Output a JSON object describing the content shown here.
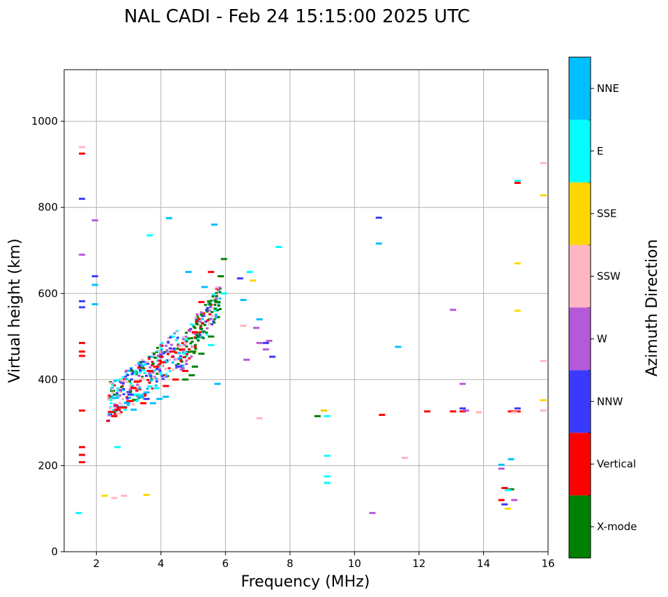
{
  "chart_data": {
    "type": "scatter",
    "title": "NAL CADI - Feb 24 15:15:00 2025 UTC",
    "xlabel": "Frequency (MHz)",
    "ylabel": "Virtual height (km)",
    "xlim": [
      1,
      16
    ],
    "ylim": [
      0,
      1120
    ],
    "xticks": [
      "2",
      "4",
      "6",
      "8",
      "10",
      "12",
      "14",
      "16"
    ],
    "yticks": [
      "0",
      "200",
      "400",
      "600",
      "800",
      "1000"
    ],
    "grid": true,
    "colorbar": {
      "label": "Azimuth Direction",
      "categories": [
        {
          "name": "X-mode",
          "color": "#008000"
        },
        {
          "name": "Vertical",
          "color": "#ff0000"
        },
        {
          "name": "NNW",
          "color": "#3a3aff"
        },
        {
          "name": "W",
          "color": "#b45ad8"
        },
        {
          "name": "SSW",
          "color": "#ffb6c1"
        },
        {
          "name": "SSE",
          "color": "#ffd700"
        },
        {
          "name": "E",
          "color": "#00ffff"
        },
        {
          "name": "NNE",
          "color": "#00bfff"
        }
      ]
    },
    "series": [
      {
        "name": "Vertical",
        "points": [
          [
            1.5,
            925
          ],
          [
            1.5,
            485
          ],
          [
            1.5,
            465
          ],
          [
            1.5,
            455
          ],
          [
            1.5,
            328
          ],
          [
            1.5,
            243
          ],
          [
            1.5,
            225
          ],
          [
            1.5,
            208
          ],
          [
            2.4,
            325
          ],
          [
            2.5,
            315
          ],
          [
            2.6,
            330
          ],
          [
            2.8,
            335
          ],
          [
            3.0,
            350
          ],
          [
            3.1,
            380
          ],
          [
            3.2,
            395
          ],
          [
            3.4,
            345
          ],
          [
            3.6,
            420
          ],
          [
            3.8,
            430
          ],
          [
            4.0,
            440
          ],
          [
            4.1,
            385
          ],
          [
            4.3,
            465
          ],
          [
            4.4,
            400
          ],
          [
            4.6,
            470
          ],
          [
            4.7,
            420
          ],
          [
            5.0,
            510
          ],
          [
            5.2,
            580
          ],
          [
            5.5,
            650
          ],
          [
            10.8,
            318
          ],
          [
            12.2,
            326
          ],
          [
            13.0,
            326
          ],
          [
            13.3,
            326
          ],
          [
            14.5,
            120
          ],
          [
            14.6,
            148
          ],
          [
            14.8,
            326
          ],
          [
            15.0,
            326
          ],
          [
            15.0,
            857
          ]
        ]
      },
      {
        "name": "X-mode",
        "points": [
          [
            4.7,
            400
          ],
          [
            4.9,
            410
          ],
          [
            5.0,
            430
          ],
          [
            5.2,
            460
          ],
          [
            5.5,
            500
          ],
          [
            5.7,
            580
          ],
          [
            5.8,
            640
          ],
          [
            5.9,
            680
          ],
          [
            8.8,
            315
          ],
          [
            9.0,
            328
          ],
          [
            14.8,
            145
          ]
        ]
      },
      {
        "name": "NNW",
        "points": [
          [
            1.5,
            582
          ],
          [
            1.5,
            568
          ],
          [
            1.5,
            820
          ],
          [
            1.9,
            640
          ],
          [
            3.0,
            365
          ],
          [
            3.5,
            355
          ],
          [
            4.5,
            430
          ],
          [
            6.4,
            635
          ],
          [
            7.2,
            485
          ],
          [
            7.4,
            453
          ],
          [
            10.7,
            776
          ],
          [
            13.3,
            333
          ],
          [
            15.0,
            333
          ],
          [
            14.6,
            110
          ]
        ]
      },
      {
        "name": "W",
        "points": [
          [
            1.5,
            690
          ],
          [
            1.9,
            770
          ],
          [
            6.6,
            446
          ],
          [
            6.9,
            520
          ],
          [
            7.0,
            485
          ],
          [
            7.2,
            470
          ],
          [
            7.3,
            490
          ],
          [
            13.0,
            562
          ],
          [
            13.3,
            390
          ],
          [
            13.4,
            328
          ],
          [
            14.5,
            193
          ],
          [
            14.9,
            120
          ],
          [
            10.5,
            90
          ]
        ]
      },
      {
        "name": "SSW",
        "points": [
          [
            1.5,
            940
          ],
          [
            2.5,
            125
          ],
          [
            2.8,
            130
          ],
          [
            6.5,
            525
          ],
          [
            7.0,
            310
          ],
          [
            11.5,
            218
          ],
          [
            13.8,
            324
          ],
          [
            14.9,
            324
          ],
          [
            15.8,
            903
          ],
          [
            15.8,
            443
          ],
          [
            15.8,
            328
          ]
        ]
      },
      {
        "name": "SSE",
        "points": [
          [
            2.2,
            130
          ],
          [
            3.5,
            132
          ],
          [
            6.8,
            630
          ],
          [
            9.0,
            328
          ],
          [
            14.7,
            100
          ],
          [
            15.0,
            560
          ],
          [
            15.0,
            670
          ],
          [
            15.8,
            828
          ],
          [
            15.8,
            352
          ]
        ]
      },
      {
        "name": "E",
        "points": [
          [
            1.4,
            90
          ],
          [
            2.6,
            243
          ],
          [
            3.2,
            365
          ],
          [
            3.8,
            380
          ],
          [
            5.5,
            480
          ],
          [
            5.9,
            600
          ],
          [
            6.7,
            650
          ],
          [
            7.6,
            708
          ],
          [
            9.1,
            315
          ],
          [
            9.1,
            175
          ],
          [
            9.1,
            160
          ],
          [
            9.1,
            223
          ],
          [
            14.7,
            143
          ],
          [
            15.0,
            862
          ],
          [
            3.6,
            735
          ]
        ]
      },
      {
        "name": "NNE",
        "points": [
          [
            1.9,
            575
          ],
          [
            1.9,
            620
          ],
          [
            2.9,
            345
          ],
          [
            3.1,
            330
          ],
          [
            3.3,
            360
          ],
          [
            3.5,
            370
          ],
          [
            3.7,
            345
          ],
          [
            3.9,
            355
          ],
          [
            4.1,
            360
          ],
          [
            4.2,
            775
          ],
          [
            4.8,
            650
          ],
          [
            5.3,
            615
          ],
          [
            5.6,
            760
          ],
          [
            5.7,
            390
          ],
          [
            6.5,
            585
          ],
          [
            7.0,
            540
          ],
          [
            10.7,
            716
          ],
          [
            11.3,
            476
          ],
          [
            14.8,
            215
          ],
          [
            14.5,
            202
          ]
        ]
      }
    ]
  }
}
